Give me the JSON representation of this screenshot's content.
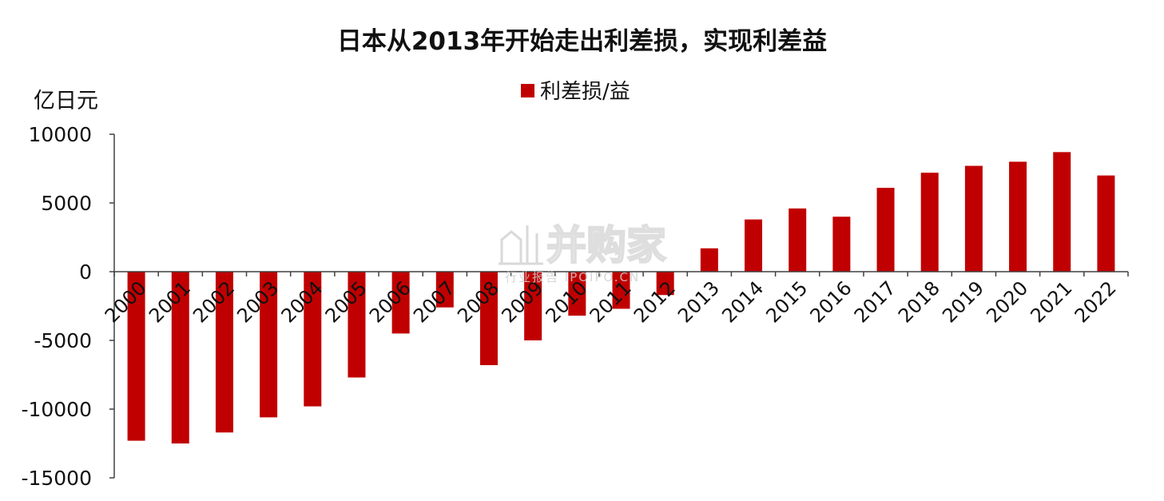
{
  "chart_data": {
    "type": "bar",
    "title": "日本从2013年开始走出利差损，实现利差益",
    "ylabel": "亿日元",
    "xlabel": "",
    "ylim": [
      -15000,
      10000
    ],
    "yticks": [
      "-15000",
      "-10000",
      "-5000",
      "0",
      "5000",
      "10000"
    ],
    "ytick_values": [
      -15000,
      -10000,
      -5000,
      0,
      5000,
      10000
    ],
    "categories": [
      "2000",
      "2001",
      "2002",
      "2003",
      "2004",
      "2005",
      "2006",
      "2007",
      "2008",
      "2009",
      "2010",
      "2011",
      "2012",
      "2013",
      "2014",
      "2015",
      "2016",
      "2017",
      "2018",
      "2019",
      "2020",
      "2021",
      "2022"
    ],
    "series": [
      {
        "name": "利差损/益",
        "color": "#C00000",
        "values": [
          -12300,
          -12500,
          -11700,
          -10600,
          -9800,
          -7700,
          -4500,
          -2600,
          -6800,
          -5000,
          -3200,
          -2700,
          -1700,
          1700,
          3800,
          4600,
          4000,
          6100,
          7200,
          7700,
          8000,
          8700,
          7000
        ]
      }
    ],
    "grid": false,
    "legend_position": "top-center"
  },
  "watermark": {
    "main": "并购家",
    "sub": "行业报告 IPOIPO.CN"
  }
}
